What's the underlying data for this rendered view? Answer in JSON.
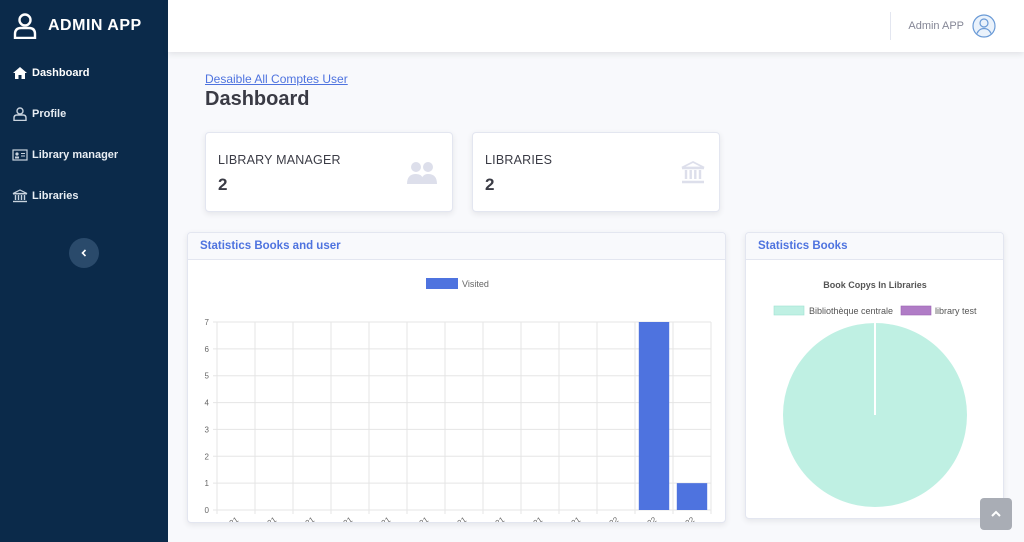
{
  "sidebar": {
    "brand": "ADMIN APP",
    "items": [
      {
        "label": "Dashboard",
        "icon": "home-icon"
      },
      {
        "label": "Profile",
        "icon": "user-icon"
      },
      {
        "label": "Library manager",
        "icon": "id-card-icon"
      },
      {
        "label": "Libraries",
        "icon": "bank-icon"
      }
    ],
    "toggle_icon": "chevron-left-icon"
  },
  "topbar": {
    "user_name": "Admin APP",
    "avatar_icon": "user-circle-icon"
  },
  "main": {
    "link": "Desaible All Comptes User",
    "title": "Dashboard",
    "stats": [
      {
        "label": "LIBRARY MANAGER",
        "value": "2",
        "icon": "users-icon"
      },
      {
        "label": "LIBRARIES",
        "value": "2",
        "icon": "bank-icon"
      }
    ],
    "panels": {
      "left_title": "Statistics Books and user",
      "right_title": "Statistics Books"
    }
  },
  "colors": {
    "sidebar": "#0b2a4a",
    "accent": "#4e73df",
    "bar": "#4e73df",
    "pie_a": "#bff0e3",
    "pie_b": "#b07cc6"
  },
  "chart_data": [
    {
      "type": "bar",
      "categories": [
        "Mar-2021",
        "Apr-2021",
        "May-2021",
        "Jun-2021",
        "Jul-2021",
        "Aug-2021",
        "Sep-2021",
        "Oct-2021",
        "Nov-2021",
        "Dec-2021",
        "Jan-2022",
        "Feb-2022",
        "Mar-2022"
      ],
      "series": [
        {
          "name": "Visited",
          "values": [
            0,
            0,
            0,
            0,
            0,
            0,
            0,
            0,
            0,
            0,
            0,
            7,
            1
          ]
        }
      ],
      "ylim": [
        0,
        7
      ],
      "yticks": [
        0,
        1,
        2,
        3,
        4,
        5,
        6,
        7
      ],
      "legend": "top-center",
      "grid": true
    },
    {
      "type": "pie",
      "title": "Book Copys In Libraries",
      "labels": [
        "Bibliothèque centrale",
        "library test"
      ],
      "values": [
        100,
        0
      ],
      "legend": "top"
    }
  ]
}
